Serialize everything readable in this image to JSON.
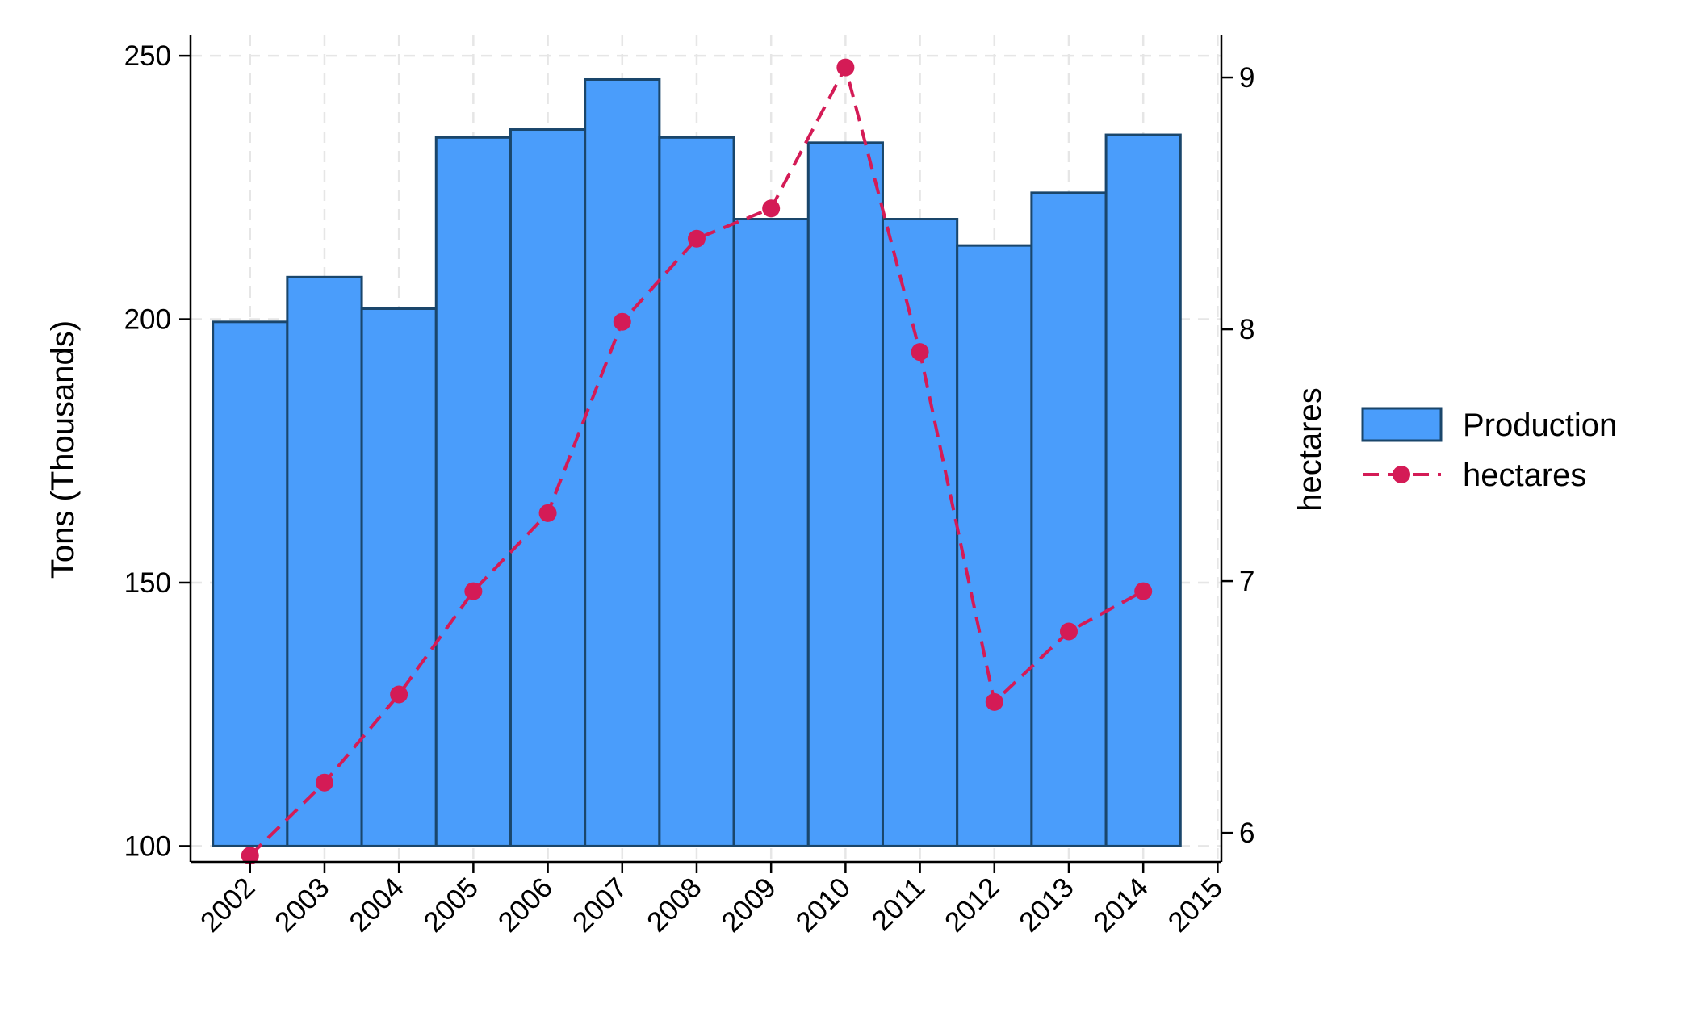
{
  "chart_data": {
    "type": "bar",
    "categories": [
      "2002",
      "2003",
      "2004",
      "2005",
      "2006",
      "2007",
      "2008",
      "2009",
      "2010",
      "2011",
      "2012",
      "2013",
      "2014",
      "2015"
    ],
    "x": [
      2002,
      2003,
      2004,
      2005,
      2006,
      2007,
      2008,
      2009,
      2010,
      2011,
      2012,
      2013,
      2014,
      2015
    ],
    "series": [
      {
        "name": "Production",
        "type": "bar",
        "axis": "left",
        "x": [
          2002,
          2003,
          2004,
          2005,
          2006,
          2007,
          2008,
          2009,
          2010,
          2011,
          2012,
          2013,
          2014
        ],
        "values": [
          199.5,
          208,
          202,
          234.5,
          236,
          245.5,
          234.5,
          219,
          233.5,
          219,
          214,
          224,
          235
        ],
        "color": "#4a9dfb",
        "edge_color": "#1a466b"
      },
      {
        "name": "hectares",
        "type": "line",
        "axis": "right",
        "x": [
          2002,
          2003,
          2004,
          2005,
          2006,
          2007,
          2008,
          2009,
          2010,
          2011,
          2012,
          2013,
          2014
        ],
        "values": [
          5.91,
          6.2,
          6.55,
          6.96,
          7.27,
          8.03,
          8.36,
          8.48,
          9.04,
          7.91,
          6.52,
          6.8,
          6.96
        ],
        "color": "#d41b56",
        "line_style": "dashed",
        "marker": "circle"
      }
    ],
    "ylabel": "Tons (Thousands)",
    "y2label": "hectares",
    "ylim": [
      97,
      254
    ],
    "y2lim": [
      5.885,
      9.17
    ],
    "yticks": [
      100,
      150,
      200,
      250
    ],
    "y2ticks": [
      6,
      7,
      8,
      9
    ],
    "xlim": [
      2001.2,
      2015.05
    ],
    "grid": true,
    "legend_position": "right",
    "legend": [
      {
        "label": "Production",
        "symbol": "bar"
      },
      {
        "label": "hectares",
        "symbol": "line-marker"
      }
    ]
  }
}
